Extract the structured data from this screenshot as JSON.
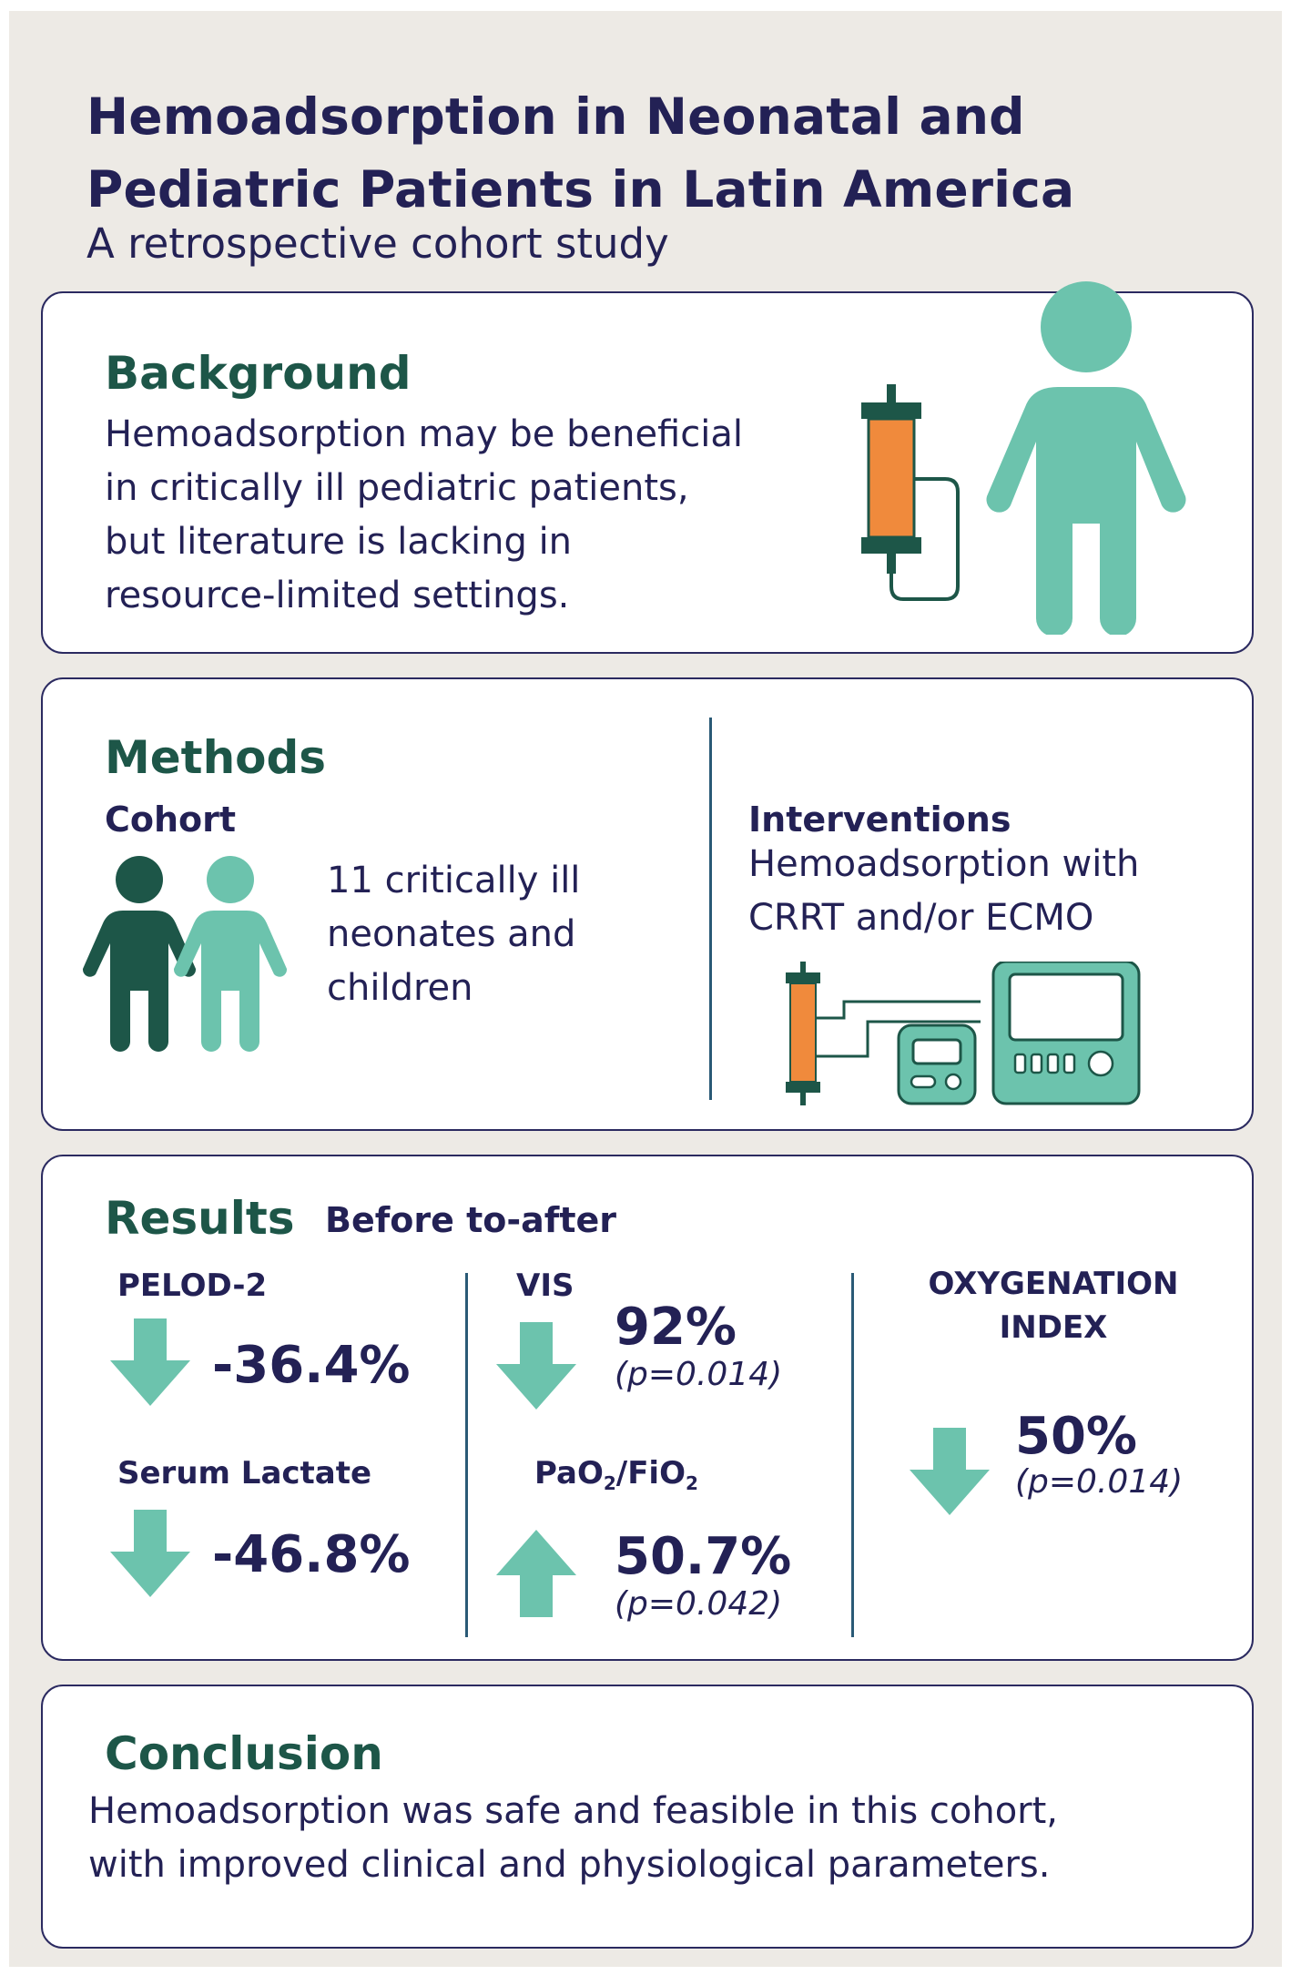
{
  "header": {
    "title_line1": "Hemoadsorption in Neonatal and",
    "title_line2": "Pediatric Patients in Latin America",
    "subtitle": "A retrospective cohort study"
  },
  "background": {
    "heading": "Background",
    "lines": [
      "Hemoadsorption may be beneficial",
      "in critically ill pediatric patients,",
      "but literature is lacking in",
      "resource-limited settings."
    ]
  },
  "methods": {
    "heading": "Methods",
    "cohort": {
      "label": "Cohort",
      "lines": [
        "11 critically ill",
        "neonates and",
        "children"
      ]
    },
    "interventions": {
      "label": "Interventions",
      "lines": [
        "Hemoadsorption with",
        "CRRT and/or ECMO"
      ]
    }
  },
  "results": {
    "heading": "Results",
    "subheading": "Before to-after",
    "pelod": {
      "label": "PELOD-2",
      "value": "-36.4%",
      "direction": "down"
    },
    "lactate": {
      "label": "Serum Lactate",
      "value": "-46.8%",
      "direction": "down"
    },
    "vis": {
      "label": "VIS",
      "value": "92%",
      "p": "(p=0.014)",
      "direction": "down"
    },
    "pao2": {
      "label_a": "PaO",
      "sub_a": "2",
      "label_sep": "/FiO",
      "sub_b": "2",
      "value": "50.7%",
      "p": "(p=0.042)",
      "direction": "up"
    },
    "oxygenation": {
      "label_line1": "OXYGENATION",
      "label_line2": "INDEX",
      "value": "50%",
      "p": "(p=0.014)",
      "direction": "down"
    }
  },
  "conclusion": {
    "heading": "Conclusion",
    "lines": [
      "Hemoadsorption was safe and feasible in this cohort,",
      "with improved clinical and physiological parameters."
    ]
  },
  "colors": {
    "title": "#232155",
    "heading": "#1d5648",
    "teal": "#6cc3ad",
    "dark_teal": "#1d5648",
    "orange": "#f08a3c"
  }
}
